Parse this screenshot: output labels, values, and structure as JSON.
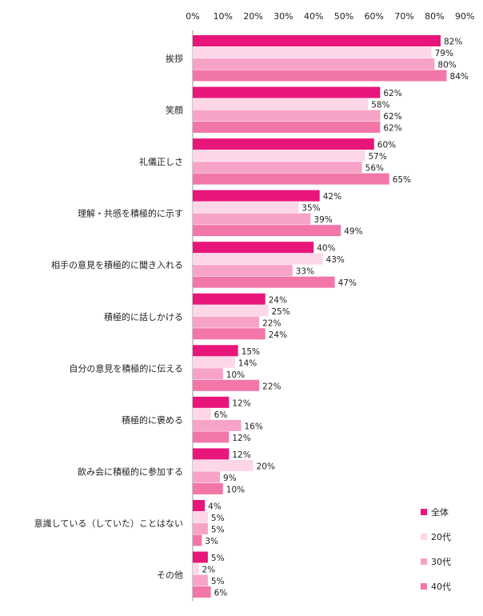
{
  "chart_data": {
    "type": "bar",
    "orientation": "horizontal",
    "x_ticks": [
      "0%",
      "10%",
      "20%",
      "30%",
      "40%",
      "50%",
      "60%",
      "70%",
      "80%",
      "90%"
    ],
    "xlim": [
      0,
      90
    ],
    "grid": false,
    "legend_position": "bottom-right",
    "value_suffix": "%",
    "categories": [
      "挨拶",
      "笑顔",
      "礼儀正しさ",
      "理解・共感を積極的に示す",
      "相手の意見を積極的に聞き入れる",
      "積極的に話しかける",
      "自分の意見を積極的に伝える",
      "積極的に褒める",
      "飲み会に積極的に参加する",
      "意識している（していた）ことはない",
      "その他"
    ],
    "series": [
      {
        "name": "全体",
        "color": "#e8167a",
        "values": [
          82,
          62,
          60,
          42,
          40,
          24,
          15,
          12,
          12,
          4,
          5
        ]
      },
      {
        "name": "20代",
        "color": "#fdd6e8",
        "values": [
          79,
          58,
          57,
          35,
          43,
          25,
          14,
          6,
          20,
          5,
          2
        ]
      },
      {
        "name": "30代",
        "color": "#f7a3c7",
        "values": [
          80,
          62,
          56,
          39,
          33,
          22,
          10,
          16,
          9,
          5,
          5
        ]
      },
      {
        "name": "40代",
        "color": "#f277a8",
        "values": [
          84,
          62,
          65,
          49,
          47,
          24,
          22,
          12,
          10,
          3,
          6
        ]
      }
    ]
  }
}
